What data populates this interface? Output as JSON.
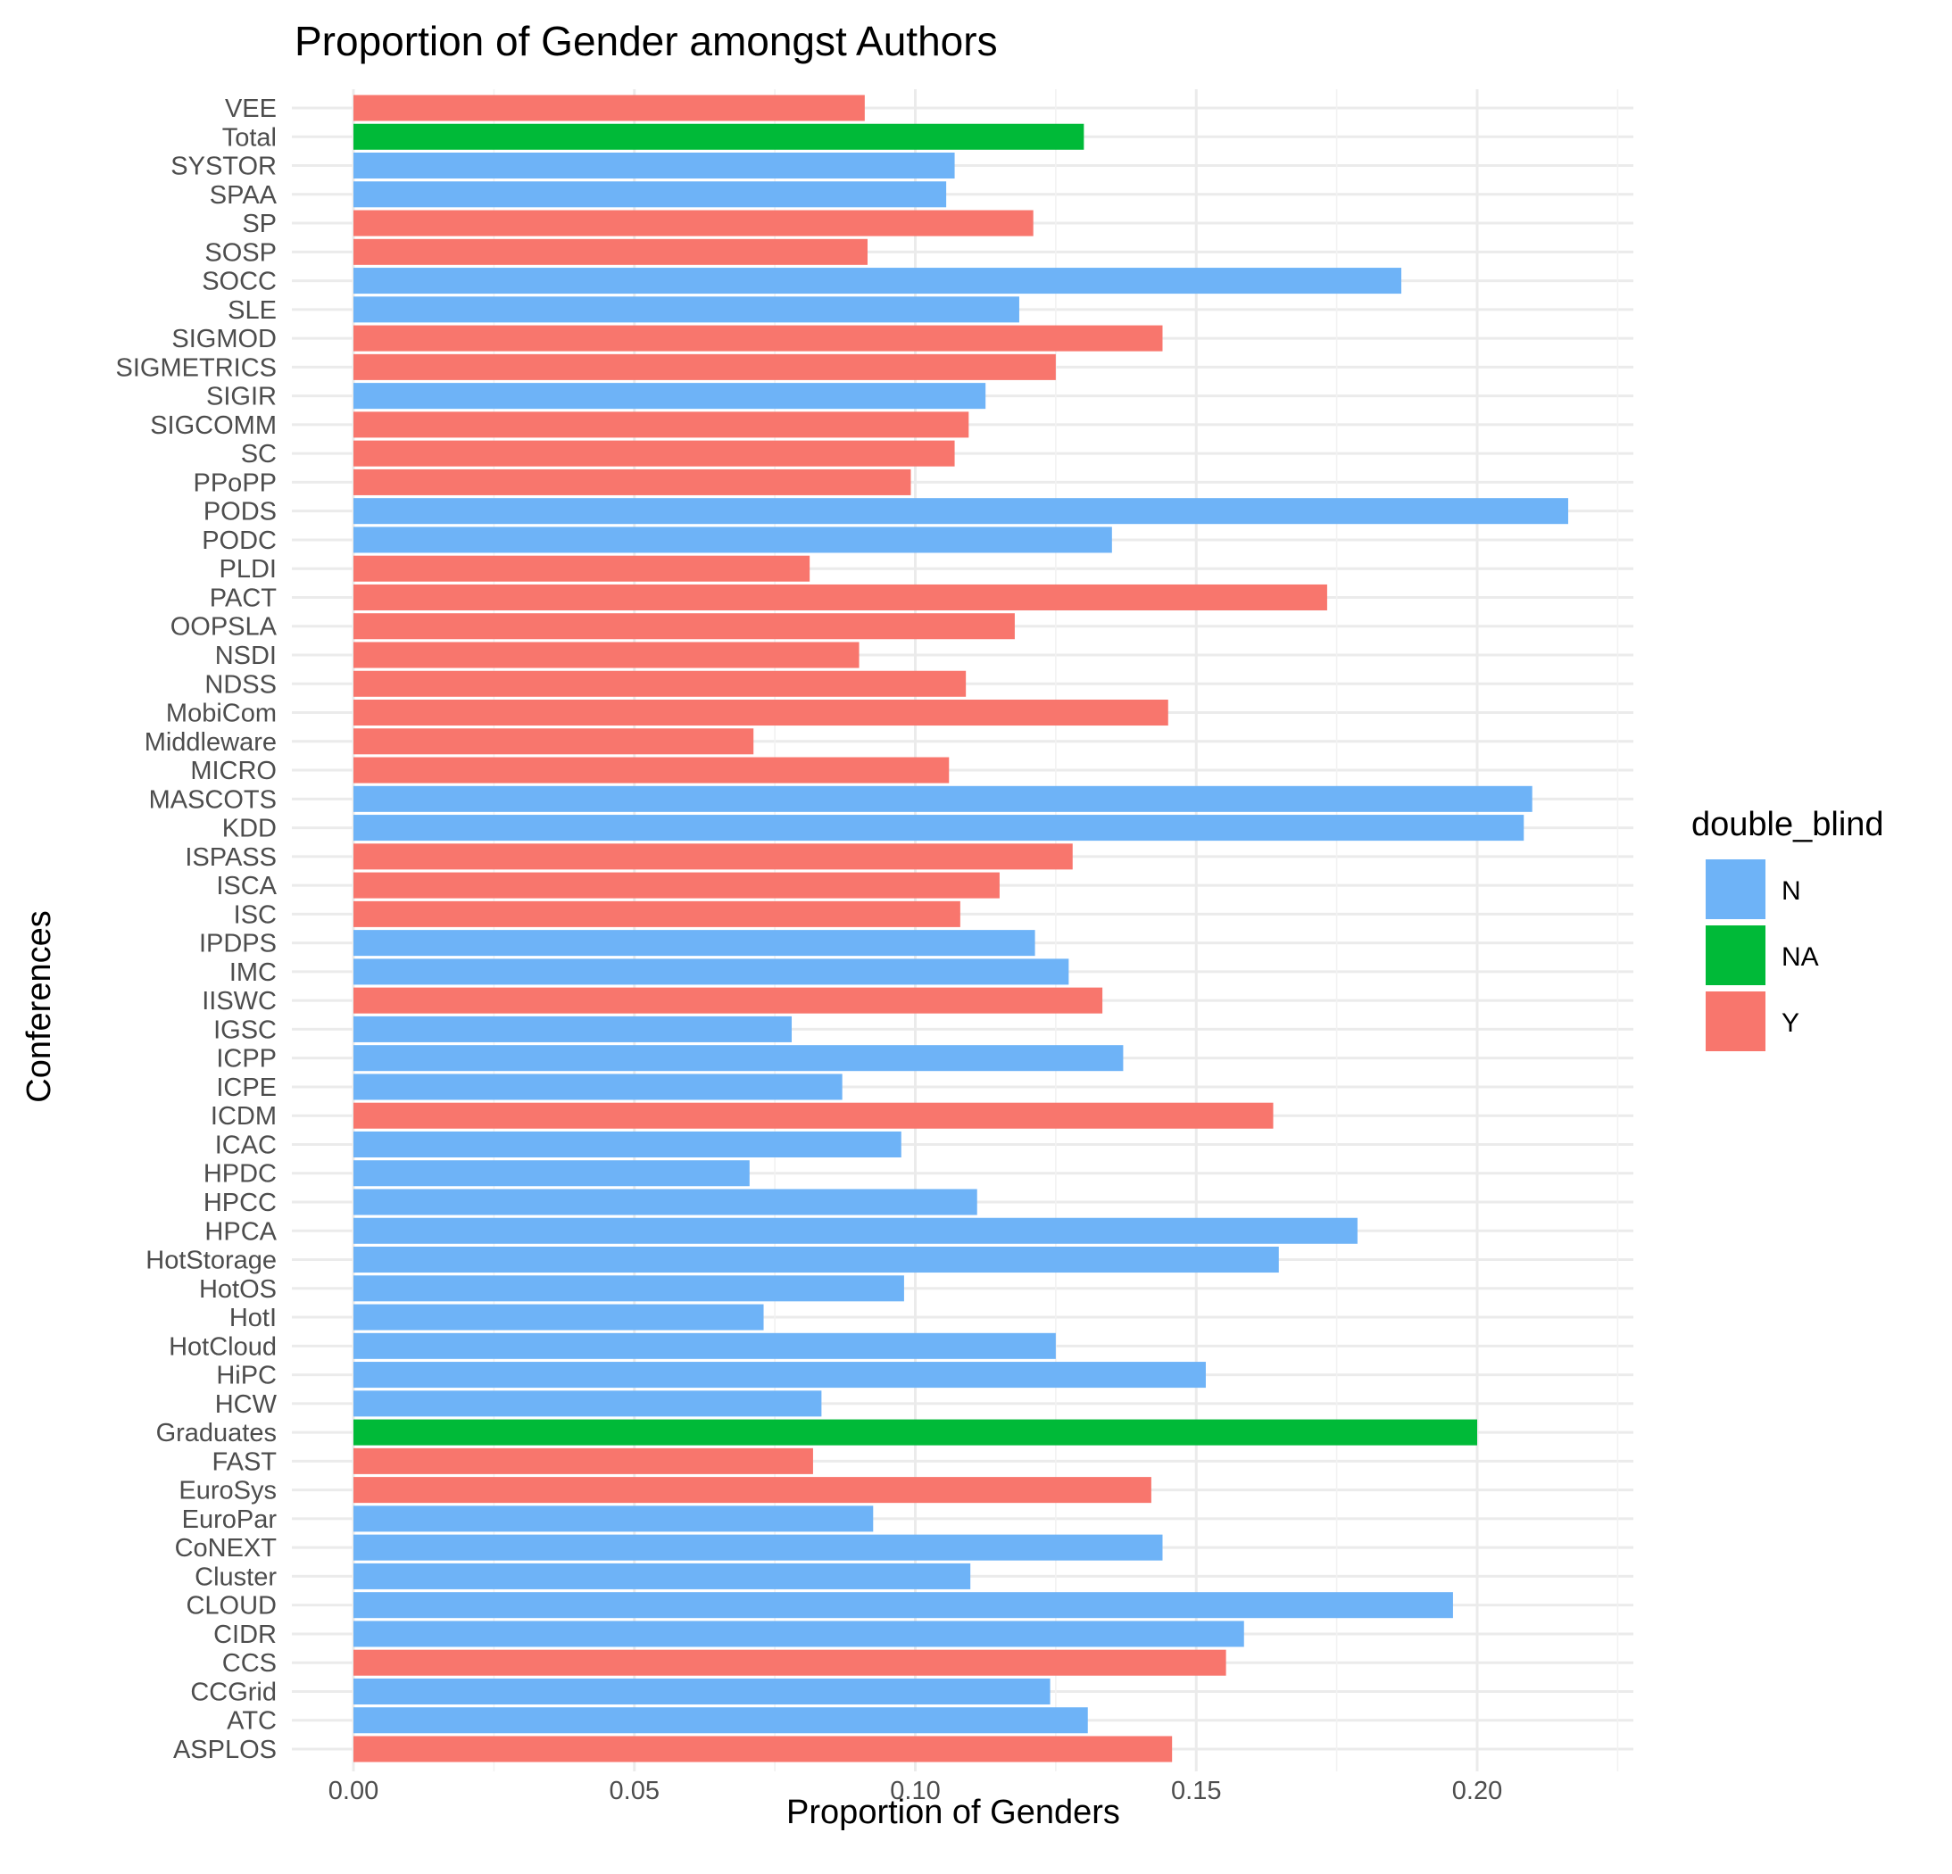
{
  "chart_data": {
    "type": "bar",
    "orientation": "horizontal",
    "title": "Proportion of Gender amongst Authors",
    "xlabel": "Proportion of Genders",
    "ylabel": "Conferences",
    "xlim": [
      0,
      0.225
    ],
    "x_ticks": [
      0.0,
      0.05,
      0.1,
      0.15,
      0.2
    ],
    "x_tick_labels": [
      "0.00",
      "0.05",
      "0.10",
      "0.15",
      "0.20"
    ],
    "grid": true,
    "legend": {
      "title": "double_blind",
      "placement": "right",
      "entries": [
        {
          "key": "N",
          "label": "N",
          "color": "#6eb3f7"
        },
        {
          "key": "NA",
          "label": "NA",
          "color": "#00ba38"
        },
        {
          "key": "Y",
          "label": "Y",
          "color": "#f8766d"
        }
      ]
    },
    "bars": [
      {
        "category": "VEE",
        "value": 0.091,
        "group": "Y"
      },
      {
        "category": "Total",
        "value": 0.13,
        "group": "NA"
      },
      {
        "category": "SYSTOR",
        "value": 0.107,
        "group": "N"
      },
      {
        "category": "SPAA",
        "value": 0.1055,
        "group": "N"
      },
      {
        "category": "SP",
        "value": 0.121,
        "group": "Y"
      },
      {
        "category": "SOSP",
        "value": 0.0915,
        "group": "Y"
      },
      {
        "category": "SOCC",
        "value": 0.1865,
        "group": "N"
      },
      {
        "category": "SLE",
        "value": 0.1185,
        "group": "N"
      },
      {
        "category": "SIGMOD",
        "value": 0.144,
        "group": "Y"
      },
      {
        "category": "SIGMETRICS",
        "value": 0.125,
        "group": "Y"
      },
      {
        "category": "SIGIR",
        "value": 0.1125,
        "group": "N"
      },
      {
        "category": "SIGCOMM",
        "value": 0.1095,
        "group": "Y"
      },
      {
        "category": "SC",
        "value": 0.107,
        "group": "Y"
      },
      {
        "category": "PPoPP",
        "value": 0.0992,
        "group": "Y"
      },
      {
        "category": "PODS",
        "value": 0.2162,
        "group": "N"
      },
      {
        "category": "PODC",
        "value": 0.135,
        "group": "N"
      },
      {
        "category": "PLDI",
        "value": 0.0812,
        "group": "Y"
      },
      {
        "category": "PACT",
        "value": 0.1733,
        "group": "Y"
      },
      {
        "category": "OOPSLA",
        "value": 0.1177,
        "group": "Y"
      },
      {
        "category": "NSDI",
        "value": 0.09,
        "group": "Y"
      },
      {
        "category": "NDSS",
        "value": 0.109,
        "group": "Y"
      },
      {
        "category": "MobiCom",
        "value": 0.145,
        "group": "Y"
      },
      {
        "category": "Middleware",
        "value": 0.0712,
        "group": "Y"
      },
      {
        "category": "MICRO",
        "value": 0.106,
        "group": "Y"
      },
      {
        "category": "MASCOTS",
        "value": 0.2098,
        "group": "N"
      },
      {
        "category": "KDD",
        "value": 0.2083,
        "group": "N"
      },
      {
        "category": "ISPASS",
        "value": 0.128,
        "group": "Y"
      },
      {
        "category": "ISCA",
        "value": 0.115,
        "group": "Y"
      },
      {
        "category": "ISC",
        "value": 0.108,
        "group": "Y"
      },
      {
        "category": "IPDPS",
        "value": 0.1213,
        "group": "N"
      },
      {
        "category": "IMC",
        "value": 0.1273,
        "group": "N"
      },
      {
        "category": "IISWC",
        "value": 0.1333,
        "group": "Y"
      },
      {
        "category": "IGSC",
        "value": 0.078,
        "group": "N"
      },
      {
        "category": "ICPP",
        "value": 0.137,
        "group": "N"
      },
      {
        "category": "ICPE",
        "value": 0.087,
        "group": "N"
      },
      {
        "category": "ICDM",
        "value": 0.1637,
        "group": "Y"
      },
      {
        "category": "ICAC",
        "value": 0.0975,
        "group": "N"
      },
      {
        "category": "HPDC",
        "value": 0.0705,
        "group": "N"
      },
      {
        "category": "HPCC",
        "value": 0.111,
        "group": "N"
      },
      {
        "category": "HPCA",
        "value": 0.1787,
        "group": "N"
      },
      {
        "category": "HotStorage",
        "value": 0.1647,
        "group": "N"
      },
      {
        "category": "HotOS",
        "value": 0.098,
        "group": "N"
      },
      {
        "category": "HotI",
        "value": 0.073,
        "group": "N"
      },
      {
        "category": "HotCloud",
        "value": 0.125,
        "group": "N"
      },
      {
        "category": "HiPC",
        "value": 0.1517,
        "group": "N"
      },
      {
        "category": "HCW",
        "value": 0.0833,
        "group": "N"
      },
      {
        "category": "Graduates",
        "value": 0.2,
        "group": "NA"
      },
      {
        "category": "FAST",
        "value": 0.0818,
        "group": "Y"
      },
      {
        "category": "EuroSys",
        "value": 0.142,
        "group": "Y"
      },
      {
        "category": "EuroPar",
        "value": 0.0925,
        "group": "N"
      },
      {
        "category": "CoNEXT",
        "value": 0.144,
        "group": "N"
      },
      {
        "category": "Cluster",
        "value": 0.1098,
        "group": "N"
      },
      {
        "category": "CLOUD",
        "value": 0.1957,
        "group": "N"
      },
      {
        "category": "CIDR",
        "value": 0.1585,
        "group": "N"
      },
      {
        "category": "CCS",
        "value": 0.1553,
        "group": "Y"
      },
      {
        "category": "CCGrid",
        "value": 0.124,
        "group": "N"
      },
      {
        "category": "ATC",
        "value": 0.1307,
        "group": "N"
      },
      {
        "category": "ASPLOS",
        "value": 0.1457,
        "group": "Y"
      }
    ]
  }
}
